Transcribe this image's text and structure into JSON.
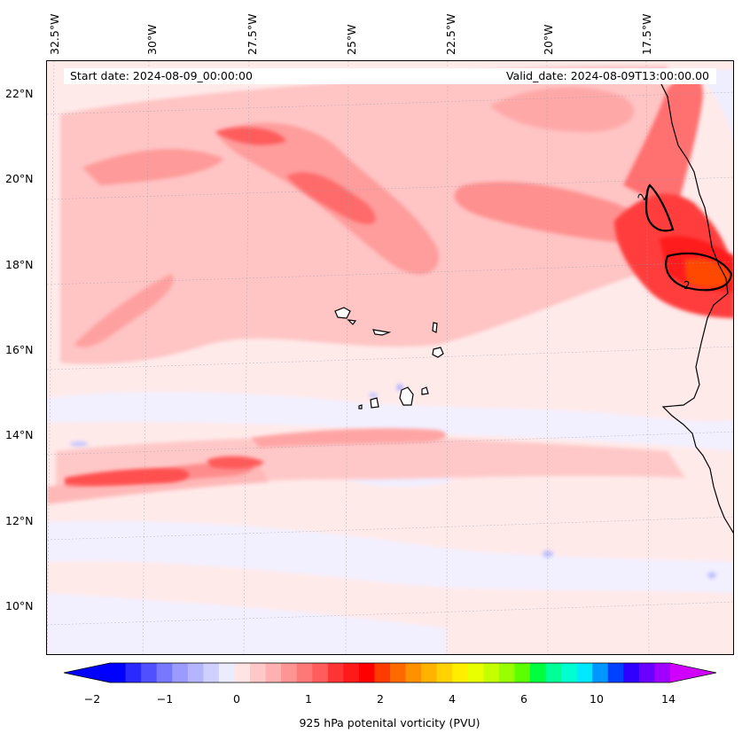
{
  "map": {
    "start_date": "Start date: 2024-08-09_00:00:00",
    "valid_date": "Valid_date: 2024-08-09T13:00:00.00",
    "lon_labels": [
      "32.5°W",
      "30°W",
      "27.5°W",
      "25°W",
      "22.5°W",
      "20°W",
      "17.5°W"
    ],
    "lat_labels": [
      "22°N",
      "20°N",
      "18°N",
      "16°N",
      "14°N",
      "12°N",
      "10°N"
    ],
    "contour_label": "2"
  },
  "colorbar": {
    "label": "925 hPa potenital vorticity (PVU)",
    "ticks": [
      "−2",
      "−1",
      "0",
      "1",
      "2",
      "4",
      "6",
      "10",
      "14"
    ],
    "colors": [
      "#0000ff",
      "#2a2aff",
      "#5050ff",
      "#7878ff",
      "#9a9aff",
      "#b4b4ff",
      "#d0d0ff",
      "#ececff",
      "#ffe4e4",
      "#ffc8c8",
      "#ffb0b0",
      "#ff9494",
      "#ff7878",
      "#ff5c5c",
      "#ff3434",
      "#ff1a1a",
      "#ff0000",
      "#ff3c00",
      "#ff6a00",
      "#ff9000",
      "#ffb300",
      "#ffd200",
      "#ffee00",
      "#e8ff00",
      "#c4ff00",
      "#98ff00",
      "#5cff00",
      "#00ff3c",
      "#00ff96",
      "#00ffd0",
      "#00e8ff",
      "#0096ff",
      "#0040ff",
      "#3000ff",
      "#6a00ff",
      "#a000ff"
    ],
    "under_color": "#0000ff",
    "over_color": "#d000ff"
  }
}
